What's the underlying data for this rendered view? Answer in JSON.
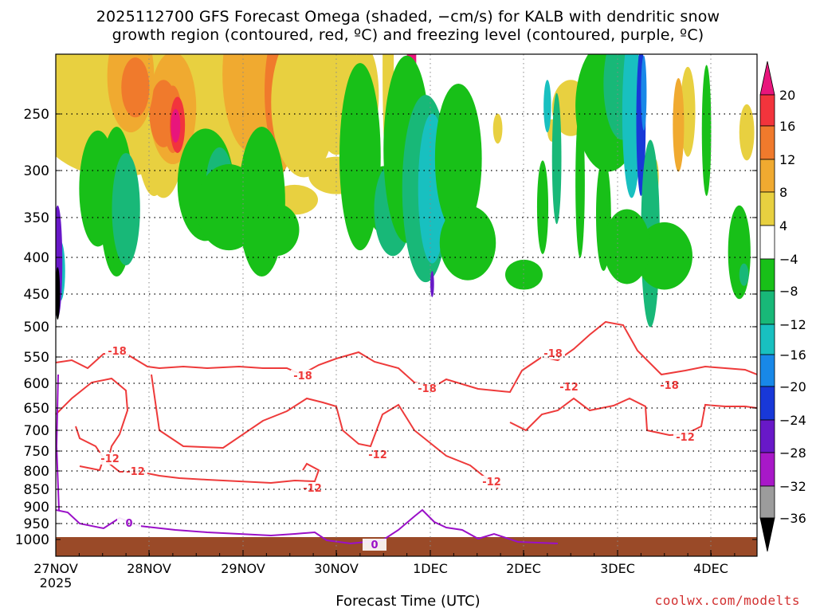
{
  "title_line1": "2025112700 GFS Forecast Omega (shaded, −cm/s) for KALB with dendritic snow",
  "title_line2": "growth region (contoured, red, ºC) and freezing level (contoured, purple, ºC)",
  "xlabel": "Forecast Time (UTC)",
  "credit": "coolwx.com/modelts",
  "chart_data": {
    "type": "heatmap",
    "x_ticks": [
      "27NOV",
      "28NOV",
      "29NOV",
      "30NOV",
      "1DEC",
      "2DEC",
      "3DEC",
      "4DEC"
    ],
    "x_year": "2025",
    "y_ticks": [
      250,
      300,
      350,
      400,
      450,
      500,
      550,
      600,
      650,
      700,
      750,
      800,
      850,
      900,
      950,
      1000
    ],
    "y_axis": "pressure (hPa), inverted",
    "grid": true,
    "colorbar": {
      "labels": [
        20,
        16,
        12,
        8,
        4,
        -4,
        -8,
        -12,
        -16,
        -20,
        -24,
        -28,
        -32,
        -36
      ],
      "colors": [
        "#e8157c",
        "#f2343c",
        "#f07a2c",
        "#f0aa30",
        "#e8d040",
        "#ffffff",
        "#18c018",
        "#18b878",
        "#18c0c0",
        "#1888e8",
        "#1838d8",
        "#6818c8",
        "#a818c8",
        "#9c9c9c",
        "#000000"
      ]
    },
    "contours": [
      {
        "name": "-18",
        "color": "#ee3a3a"
      },
      {
        "name": "-12",
        "color": "#ee3a3a"
      },
      {
        "name": "0",
        "color": "#9a10c8"
      }
    ],
    "terrain_color": "#9a4a28"
  }
}
